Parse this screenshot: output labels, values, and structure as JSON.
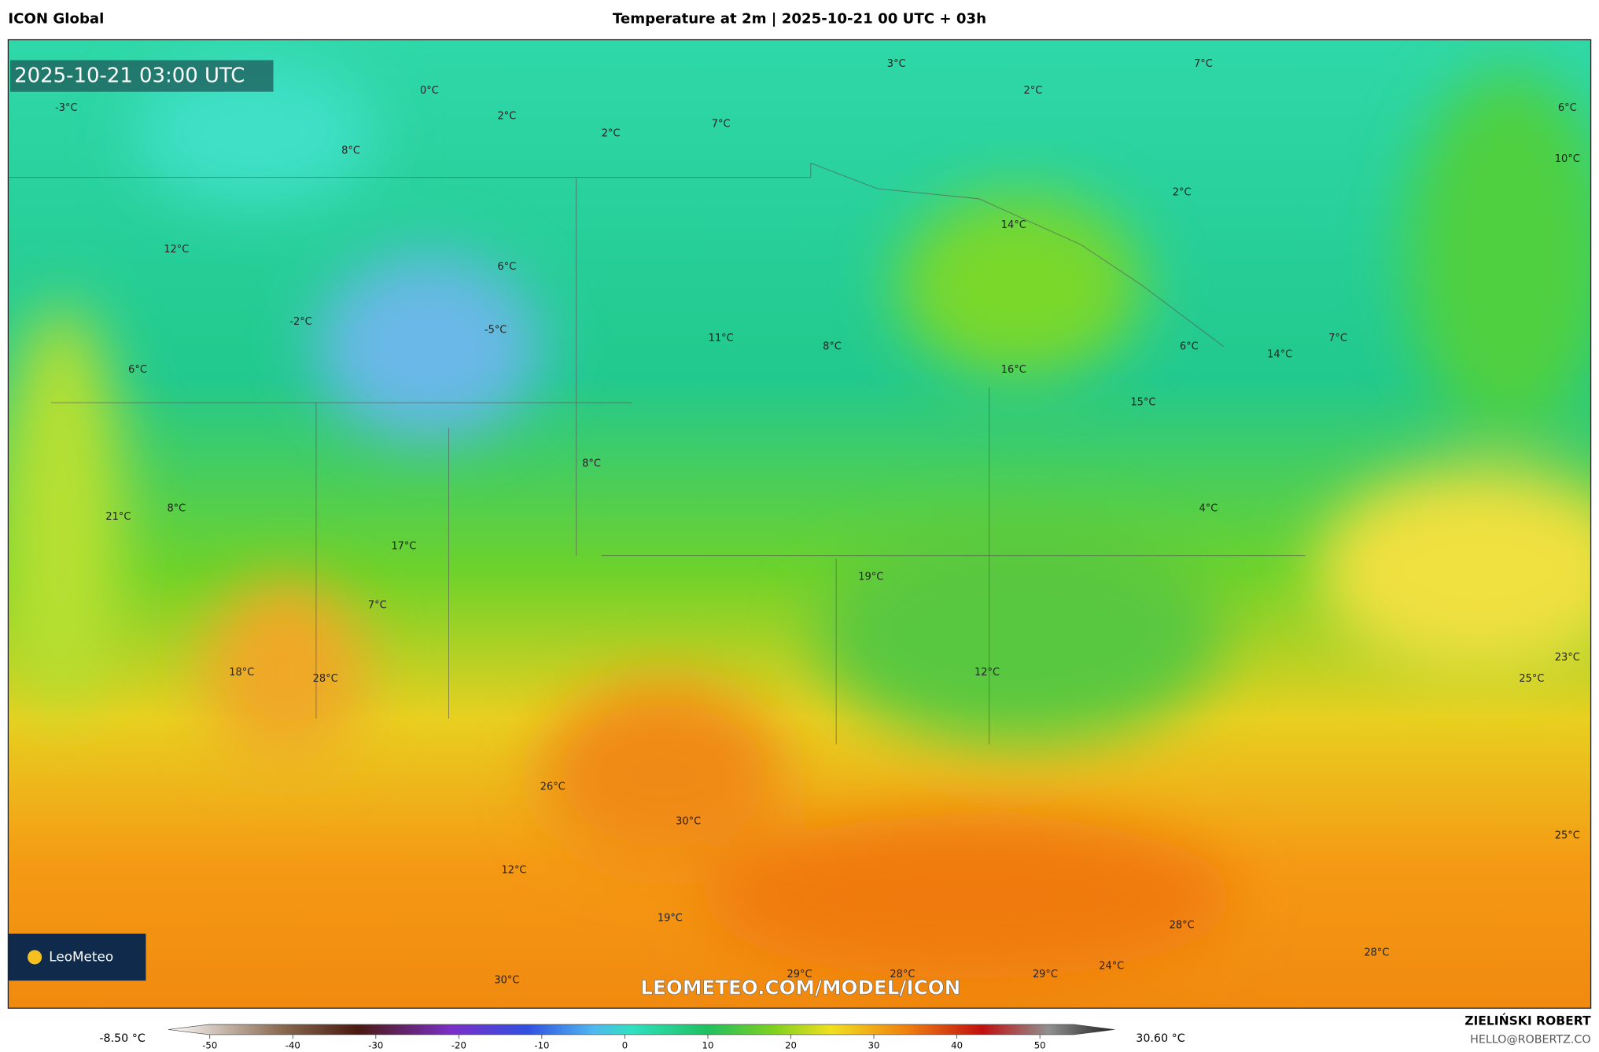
{
  "header": {
    "left": "ICON Global",
    "title": "Temperature at 2m | 2025-10-21 00 UTC + 03h"
  },
  "timestamp": "2025-10-21 03:00 UTC",
  "map_labels": [
    "-3°C",
    "0°C",
    "2°C",
    "2°C",
    "7°C",
    "3°C",
    "2°C",
    "7°C",
    "6°C",
    "10°C",
    "8°C",
    "2°C",
    "14°C",
    "12°C",
    "6°C",
    "-2°C",
    "-5°C",
    "11°C",
    "8°C",
    "6°C",
    "7°C",
    "14°C",
    "16°C",
    "6°C",
    "15°C",
    "8°C",
    "21°C",
    "8°C",
    "4°C",
    "17°C",
    "19°C",
    "7°C",
    "23°C",
    "18°C",
    "28°C",
    "12°C",
    "25°C",
    "26°C",
    "30°C",
    "25°C",
    "12°C",
    "19°C",
    "28°C",
    "28°C",
    "24°C",
    "29°C",
    "28°C",
    "29°C",
    "30°C"
  ],
  "watermark": "LEOMETEO.COM/MODEL/ICON",
  "logo": "LeoMeteo",
  "colorbar": {
    "min_label": "-8.50 °C",
    "max_label": "30.60 °C",
    "lim": [
      -55,
      59
    ],
    "ticks": [
      -50,
      -40,
      -30,
      -20,
      -10,
      0,
      10,
      20,
      30,
      40,
      50
    ]
  },
  "footer": {
    "author": "ZIELIŃSKI ROBERT",
    "contact": "HELLO@ROBERTZ.CO"
  }
}
